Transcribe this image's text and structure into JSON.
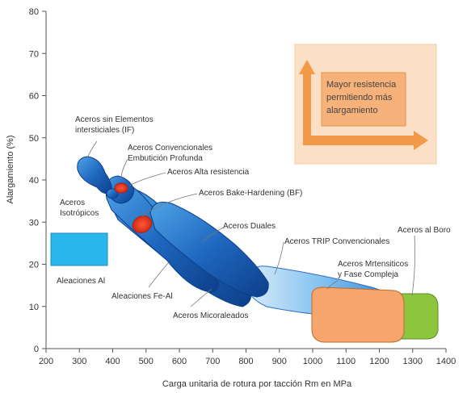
{
  "chart_data": {
    "type": "scatter",
    "xlabel": "Carga unitaria de rotura por tacción Rm en MPa",
    "ylabel": "Alargamiento (%)",
    "xlim": [
      200,
      1400
    ],
    "ylim": [
      0,
      80
    ],
    "xticks": [
      "200",
      "300",
      "400",
      "500",
      "600",
      "700",
      "800",
      "900",
      "1000",
      "1100",
      "1200",
      "1300",
      "1400"
    ],
    "yticks": [
      "0",
      "10",
      "20",
      "30",
      "40",
      "50",
      "60",
      "70",
      "80"
    ],
    "grid": false,
    "regions": [
      {
        "label": "Aleaciones Al",
        "shape": "rectangle",
        "x_range": [
          220,
          400
        ],
        "y_range": [
          19,
          28
        ],
        "color": "#29b6ea"
      },
      {
        "label": "Aceros sin Elementos intersticiales (IF)",
        "shape": "band",
        "x_range": [
          300,
          370
        ],
        "y_range": [
          41,
          45
        ],
        "color": "#1e6fc4"
      },
      {
        "label": "Aceros Convencionales Embutición Profunda",
        "shape": "band",
        "x_range": [
          400,
          470
        ],
        "y_range": [
          36,
          42
        ],
        "color": "#1e6fc4"
      },
      {
        "label": "Aceros Alta resistencia",
        "shape": "ellipse",
        "x_range": [
          430,
          460
        ],
        "y_range": [
          37,
          40
        ],
        "color": "#e8331c"
      },
      {
        "label": "Aceros Bake-Hardening (BF)",
        "shape": "ellipse",
        "x_range": [
          480,
          530
        ],
        "y_range": [
          27,
          32
        ],
        "color": "#e8331c"
      },
      {
        "label": "Aceros Isotrópicos",
        "shape": "band",
        "x_range": [
          400,
          430
        ],
        "y_range": [
          36,
          39
        ],
        "color": "#1e6fc4"
      },
      {
        "label": "Aleaciones Fe-Al",
        "shape": "band",
        "x_range": [
          410,
          720
        ],
        "y_range": [
          14,
          40
        ],
        "color": "#1e6fc4"
      },
      {
        "label": "Aceros Micoraleados",
        "shape": "band",
        "x_range": [
          500,
          900
        ],
        "y_range": [
          12,
          36
        ],
        "color": "#1e6fc4"
      },
      {
        "label": "Aceros Duales",
        "shape": "band",
        "x_range": [
          530,
          860
        ],
        "y_range": [
          13,
          35
        ],
        "color": "#2a7fd0"
      },
      {
        "label": "Aceros TRIP Convencionales",
        "shape": "band",
        "x_range": [
          850,
          1230
        ],
        "y_range": [
          7,
          20
        ],
        "color": "#8ac7ee"
      },
      {
        "label": "Aceros Mrtensiticos y Fase Compleja",
        "shape": "rectangle",
        "x_range": [
          1010,
          1280
        ],
        "y_range": [
          4,
          15
        ],
        "color": "#f6a66d"
      },
      {
        "label": "Aceros al Boro",
        "shape": "rectangle",
        "x_range": [
          1220,
          1380
        ],
        "y_range": [
          4,
          13
        ],
        "color": "#8cc63f"
      }
    ],
    "inset": {
      "text": "Mayor resistencia permitiendo más alargamiento",
      "background": "#fbdfc6",
      "arrow_color": "#f29a4a"
    }
  },
  "labels": {
    "aleaciones_al": "Aleaciones Al",
    "if_line1": "Aceros sin Elementos",
    "if_line2": "intersticiales (IF)",
    "conv_line1": "Aceros Convencionales",
    "conv_line2": "Embutición Profunda",
    "alta": "Aceros Alta resistencia",
    "bake": "Aceros Bake-Hardening (BF)",
    "iso_line1": "Aceros",
    "iso_line2": "Isotrópicos",
    "duales": "Aceros Duales",
    "trip": "Aceros TRIP Convencionales",
    "boro": "Aceros al Boro",
    "mart_line1": "Aceros Mrtensiticos",
    "mart_line2": "y Fase Compleja",
    "fe_al": "Aleaciones Fe-Al",
    "micro": "Aceros Micoraleados",
    "inset_line1": "Mayor resistencia",
    "inset_line2": "permitiendo más",
    "inset_line3": "alargamiento"
  }
}
